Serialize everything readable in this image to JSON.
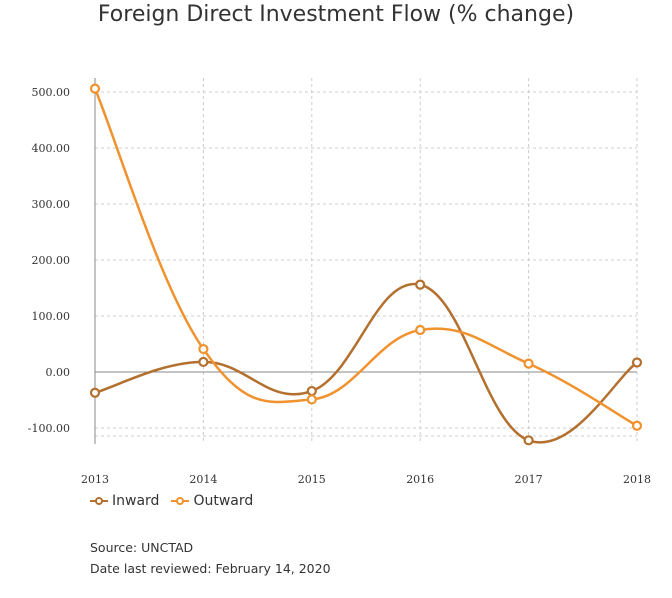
{
  "chart_data": {
    "type": "line",
    "title": "Foreign Direct Investment Flow (% change)",
    "x": [
      "2013",
      "2014",
      "2015",
      "2016",
      "2017",
      "2018"
    ],
    "yticks": [
      "500.00",
      "400.00",
      "300.00",
      "200.00",
      "100.00",
      "0.00",
      "-100.00"
    ],
    "ylim": [
      -130,
      510
    ],
    "grid": true,
    "legend_position": "bottom-left",
    "series": [
      {
        "name": "Inward",
        "values": [
          -37,
          18,
          -34,
          156,
          -122,
          17
        ],
        "color": "#b3702e"
      },
      {
        "name": "Outward",
        "values": [
          506,
          41,
          -49,
          75,
          15,
          -96
        ],
        "color": "#f0922e"
      }
    ]
  },
  "source": {
    "line1": "Source: UNCTAD",
    "line2": "Date last reviewed: February 14, 2020"
  }
}
